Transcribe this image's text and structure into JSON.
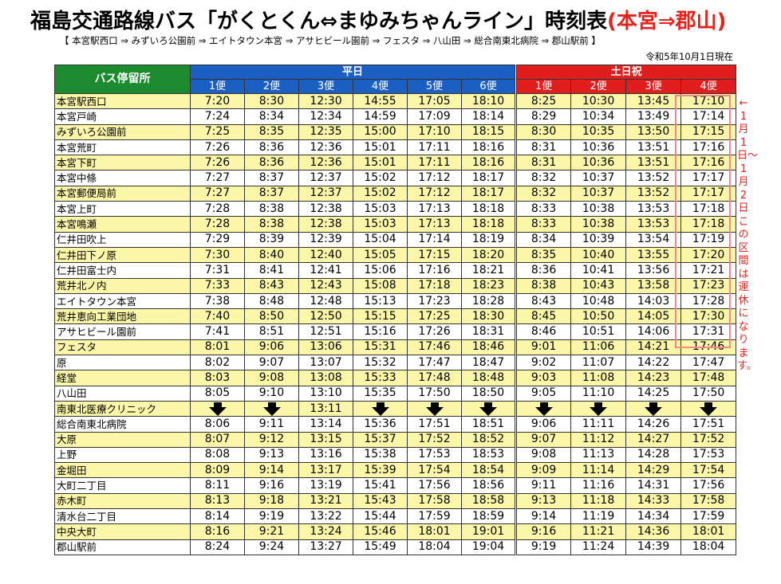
{
  "title": {
    "main": "福島交通路線バス「がくとくん⇔まゆみちゃんライン」時刻表",
    "direction": "(本宮⇒郡山)"
  },
  "route_summary": "【 本宮駅西口 ⇒ みずいろ公園前 ⇒ エイトタウン本宮 ⇒ アサヒビール園前 ⇒ フェスタ ⇒ 八山田 ⇒ 総合南東北病院 ⇒ 郡山駅前 】",
  "as_of": "令和5年10月1日現在",
  "header": {
    "stop_col": "バス停留所",
    "weekday": "平日",
    "weekend": "土日祝",
    "weekday_trips": [
      "1便",
      "2便",
      "3便",
      "4便",
      "5便",
      "6便"
    ],
    "weekend_trips": [
      "1便",
      "2便",
      "3便",
      "4便"
    ]
  },
  "closure_note": "←1月1日〜1月2日この区間は運休になります。",
  "rows": [
    {
      "stop": "本宮駅西口",
      "times": [
        "7:20",
        "8:30",
        "12:30",
        "14:55",
        "17:05",
        "18:10",
        "8:25",
        "10:30",
        "13:45",
        "17:10"
      ]
    },
    {
      "stop": "本宮戸崎",
      "times": [
        "7:24",
        "8:34",
        "12:34",
        "14:59",
        "17:09",
        "18:14",
        "8:29",
        "10:34",
        "13:49",
        "17:14"
      ]
    },
    {
      "stop": "みずいろ公園前",
      "times": [
        "7:25",
        "8:35",
        "12:35",
        "15:00",
        "17:10",
        "18:15",
        "8:30",
        "10:35",
        "13:50",
        "17:15"
      ]
    },
    {
      "stop": "本宮荒町",
      "times": [
        "7:26",
        "8:36",
        "12:36",
        "15:01",
        "17:11",
        "18:16",
        "8:31",
        "10:36",
        "13:51",
        "17:16"
      ]
    },
    {
      "stop": "本宮下町",
      "times": [
        "7:26",
        "8:36",
        "12:36",
        "15:01",
        "17:11",
        "18:16",
        "8:31",
        "10:36",
        "13:51",
        "17:16"
      ]
    },
    {
      "stop": "本宮中條",
      "times": [
        "7:27",
        "8:37",
        "12:37",
        "15:02",
        "17:12",
        "18:17",
        "8:32",
        "10:37",
        "13:52",
        "17:17"
      ]
    },
    {
      "stop": "本宮郵便局前",
      "times": [
        "7:27",
        "8:37",
        "12:37",
        "15:02",
        "17:12",
        "18:17",
        "8:32",
        "10:37",
        "13:52",
        "17:17"
      ]
    },
    {
      "stop": "本宮上町",
      "times": [
        "7:28",
        "8:38",
        "12:38",
        "15:03",
        "17:13",
        "18:18",
        "8:33",
        "10:38",
        "13:53",
        "17:18"
      ]
    },
    {
      "stop": "本宮鳴瀬",
      "times": [
        "7:28",
        "8:38",
        "12:38",
        "15:03",
        "17:13",
        "18:18",
        "8:33",
        "10:38",
        "13:53",
        "17:18"
      ]
    },
    {
      "stop": "仁井田吹上",
      "times": [
        "7:29",
        "8:39",
        "12:39",
        "15:04",
        "17:14",
        "18:19",
        "8:34",
        "10:39",
        "13:54",
        "17:19"
      ]
    },
    {
      "stop": "仁井田下ノ原",
      "times": [
        "7:30",
        "8:40",
        "12:40",
        "15:05",
        "17:15",
        "18:20",
        "8:35",
        "10:40",
        "13:55",
        "17:20"
      ]
    },
    {
      "stop": "仁井田富士内",
      "times": [
        "7:31",
        "8:41",
        "12:41",
        "15:06",
        "17:16",
        "18:21",
        "8:36",
        "10:41",
        "13:56",
        "17:21"
      ]
    },
    {
      "stop": "荒井北ノ内",
      "times": [
        "7:33",
        "8:43",
        "12:43",
        "15:08",
        "17:18",
        "18:23",
        "8:38",
        "10:43",
        "13:58",
        "17:23"
      ]
    },
    {
      "stop": "エイトタウン本宮",
      "times": [
        "7:38",
        "8:48",
        "12:48",
        "15:13",
        "17:23",
        "18:28",
        "8:43",
        "10:48",
        "14:03",
        "17:28"
      ]
    },
    {
      "stop": "荒井恵向工業団地",
      "times": [
        "7:40",
        "8:50",
        "12:50",
        "15:15",
        "17:25",
        "18:30",
        "8:45",
        "10:50",
        "14:05",
        "17:30"
      ]
    },
    {
      "stop": "アサヒビール園前",
      "times": [
        "7:41",
        "8:51",
        "12:51",
        "15:16",
        "17:26",
        "18:31",
        "8:46",
        "10:51",
        "14:06",
        "17:31"
      ]
    },
    {
      "stop": "フェスタ",
      "times": [
        "8:01",
        "9:06",
        "13:06",
        "15:31",
        "17:46",
        "18:46",
        "9:01",
        "11:06",
        "14:21",
        "17:46"
      ]
    },
    {
      "stop": "原",
      "times": [
        "8:02",
        "9:07",
        "13:07",
        "15:32",
        "17:47",
        "18:47",
        "9:02",
        "11:07",
        "14:22",
        "17:47"
      ]
    },
    {
      "stop": "経堂",
      "times": [
        "8:03",
        "9:08",
        "13:08",
        "15:33",
        "17:48",
        "18:48",
        "9:03",
        "11:08",
        "14:23",
        "17:48"
      ]
    },
    {
      "stop": "八山田",
      "times": [
        "8:05",
        "9:10",
        "13:10",
        "15:35",
        "17:50",
        "18:50",
        "9:05",
        "11:10",
        "14:25",
        "17:50"
      ]
    },
    {
      "stop": "南東北医療クリニック",
      "times": [
        "↓",
        "↓",
        "13:11",
        "↓",
        "↓",
        "↓",
        "↓",
        "↓",
        "↓",
        "↓"
      ]
    },
    {
      "stop": "総合南東北病院",
      "times": [
        "8:06",
        "9:11",
        "13:14",
        "15:36",
        "17:51",
        "18:51",
        "9:06",
        "11:11",
        "14:26",
        "17:51"
      ]
    },
    {
      "stop": "大原",
      "times": [
        "8:07",
        "9:12",
        "13:15",
        "15:37",
        "17:52",
        "18:52",
        "9:07",
        "11:12",
        "14:27",
        "17:52"
      ]
    },
    {
      "stop": "上野",
      "times": [
        "8:08",
        "9:13",
        "13:16",
        "15:38",
        "17:53",
        "18:53",
        "9:08",
        "11:13",
        "14:28",
        "17:53"
      ]
    },
    {
      "stop": "金堀田",
      "times": [
        "8:09",
        "9:14",
        "13:17",
        "15:39",
        "17:54",
        "18:54",
        "9:09",
        "11:14",
        "14:29",
        "17:54"
      ]
    },
    {
      "stop": "大町二丁目",
      "times": [
        "8:11",
        "9:16",
        "13:19",
        "15:41",
        "17:56",
        "18:56",
        "9:11",
        "11:16",
        "14:31",
        "17:56"
      ]
    },
    {
      "stop": "赤木町",
      "times": [
        "8:13",
        "9:18",
        "13:21",
        "15:43",
        "17:58",
        "18:58",
        "9:13",
        "11:18",
        "14:33",
        "17:58"
      ]
    },
    {
      "stop": "清水台二丁目",
      "times": [
        "8:14",
        "9:19",
        "13:22",
        "15:44",
        "17:59",
        "18:59",
        "9:14",
        "11:19",
        "14:34",
        "17:59"
      ]
    },
    {
      "stop": "中央大町",
      "times": [
        "8:16",
        "9:21",
        "13:24",
        "15:46",
        "18:01",
        "19:01",
        "9:16",
        "11:21",
        "14:36",
        "18:01"
      ]
    },
    {
      "stop": "郡山駅前",
      "times": [
        "8:24",
        "9:24",
        "13:27",
        "15:49",
        "18:04",
        "19:04",
        "9:19",
        "11:24",
        "14:39",
        "18:04"
      ]
    }
  ]
}
